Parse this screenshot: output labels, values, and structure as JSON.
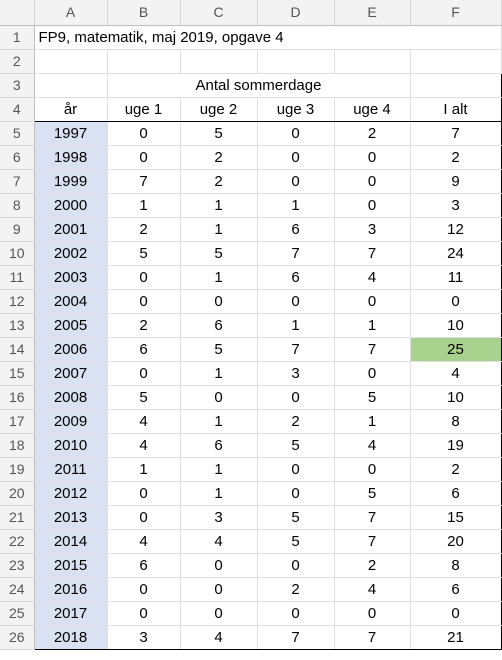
{
  "columns": [
    "A",
    "B",
    "C",
    "D",
    "E",
    "F"
  ],
  "title": "FP9, matematik, maj 2019, opgave 4",
  "group_header": "Antal sommerdage",
  "headers": [
    "år",
    "uge 1",
    "uge 2",
    "uge 3",
    "uge 4",
    "I alt"
  ],
  "rows": [
    {
      "n": "5",
      "cells": [
        "1997",
        "0",
        "5",
        "0",
        "2",
        "7"
      ]
    },
    {
      "n": "6",
      "cells": [
        "1998",
        "0",
        "2",
        "0",
        "0",
        "2"
      ]
    },
    {
      "n": "7",
      "cells": [
        "1999",
        "7",
        "2",
        "0",
        "0",
        "9"
      ]
    },
    {
      "n": "8",
      "cells": [
        "2000",
        "1",
        "1",
        "1",
        "0",
        "3"
      ]
    },
    {
      "n": "9",
      "cells": [
        "2001",
        "2",
        "1",
        "6",
        "3",
        "12"
      ]
    },
    {
      "n": "10",
      "cells": [
        "2002",
        "5",
        "5",
        "7",
        "7",
        "24"
      ]
    },
    {
      "n": "11",
      "cells": [
        "2003",
        "0",
        "1",
        "6",
        "4",
        "11"
      ]
    },
    {
      "n": "12",
      "cells": [
        "2004",
        "0",
        "0",
        "0",
        "0",
        "0"
      ]
    },
    {
      "n": "13",
      "cells": [
        "2005",
        "2",
        "6",
        "1",
        "1",
        "10"
      ]
    },
    {
      "n": "14",
      "cells": [
        "2006",
        "6",
        "5",
        "7",
        "7",
        "25"
      ]
    },
    {
      "n": "15",
      "cells": [
        "2007",
        "0",
        "1",
        "3",
        "0",
        "4"
      ]
    },
    {
      "n": "16",
      "cells": [
        "2008",
        "5",
        "0",
        "0",
        "5",
        "10"
      ]
    },
    {
      "n": "17",
      "cells": [
        "2009",
        "4",
        "1",
        "2",
        "1",
        "8"
      ]
    },
    {
      "n": "18",
      "cells": [
        "2010",
        "4",
        "6",
        "5",
        "4",
        "19"
      ]
    },
    {
      "n": "19",
      "cells": [
        "2011",
        "1",
        "1",
        "0",
        "0",
        "2"
      ]
    },
    {
      "n": "20",
      "cells": [
        "2012",
        "0",
        "1",
        "0",
        "5",
        "6"
      ]
    },
    {
      "n": "21",
      "cells": [
        "2013",
        "0",
        "3",
        "5",
        "7",
        "15"
      ]
    },
    {
      "n": "22",
      "cells": [
        "2014",
        "4",
        "4",
        "5",
        "7",
        "20"
      ]
    },
    {
      "n": "23",
      "cells": [
        "2015",
        "6",
        "0",
        "0",
        "2",
        "8"
      ]
    },
    {
      "n": "24",
      "cells": [
        "2016",
        "0",
        "0",
        "2",
        "4",
        "6"
      ]
    },
    {
      "n": "25",
      "cells": [
        "2017",
        "0",
        "0",
        "0",
        "0",
        "0"
      ]
    },
    {
      "n": "26",
      "cells": [
        "2018",
        "3",
        "4",
        "7",
        "7",
        "21"
      ]
    }
  ],
  "highlight": {
    "row_year": "2006",
    "column": "F",
    "color": "#a9d18e"
  },
  "year_column_color": "#d9e1f2",
  "row_numbers_top": [
    "1",
    "2",
    "3",
    "4"
  ]
}
